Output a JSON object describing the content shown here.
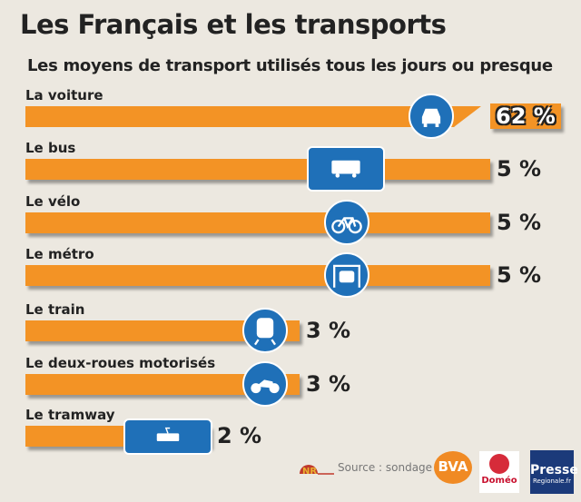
{
  "chart_data": {
    "type": "bar",
    "orientation": "horizontal",
    "title": "Les Français et les transports",
    "subtitle": "Les moyens de transport utilisés tous les jours ou presque",
    "categories": [
      "La voiture",
      "Le bus",
      "Le vélo",
      "Le métro",
      "Le train",
      "Le deux-roues motorisés",
      "Le tramway"
    ],
    "values": [
      62,
      5,
      5,
      5,
      3,
      3,
      2
    ],
    "value_labels": [
      "62 %",
      "5 %",
      "5 %",
      "5 %",
      "3 %",
      "3 %",
      "2 %"
    ],
    "icons": [
      "car-icon",
      "bus-icon",
      "bicycle-icon",
      "metro-icon",
      "train-icon",
      "motorbike-icon",
      "tram-icon"
    ],
    "axis_break": "La voiture bar is broken",
    "colors": {
      "bar": "#f39325",
      "icon": "#1f70b8",
      "background": "#ece8e0"
    }
  },
  "footer": {
    "source": "Source : sondage :",
    "logos": [
      "NR",
      "BVA",
      "Doméo",
      "Presse Regionale.fr"
    ]
  }
}
